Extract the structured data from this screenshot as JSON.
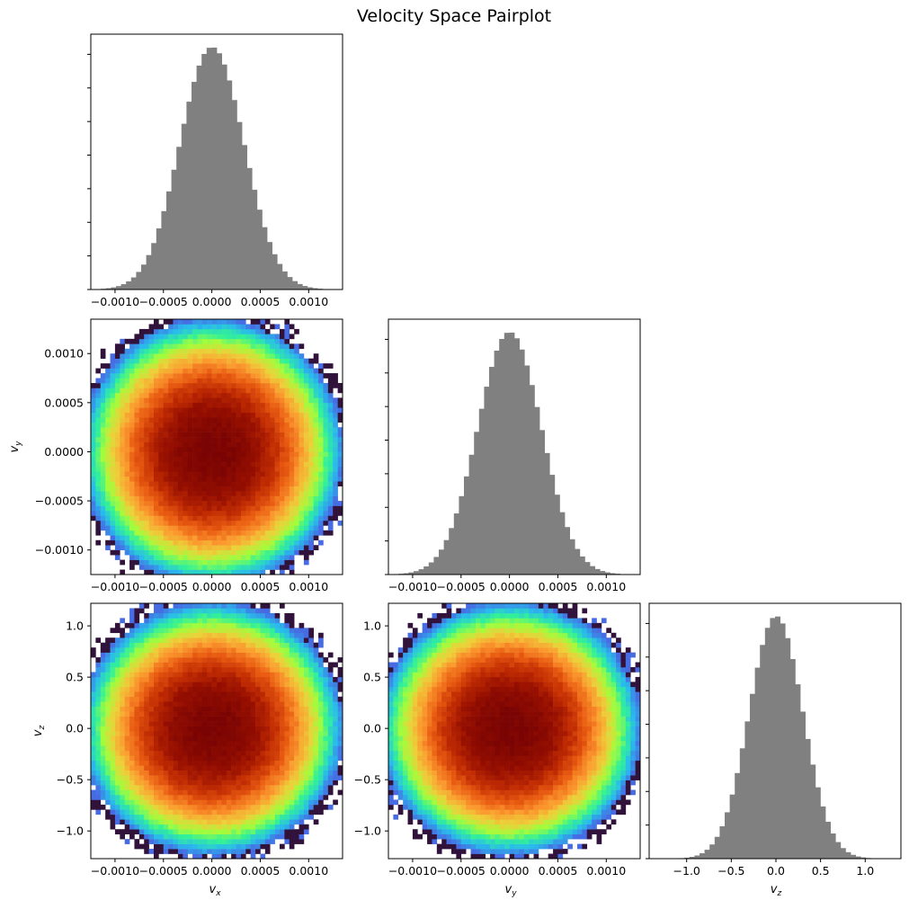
{
  "chart_data": {
    "title": "Velocity Space Pairplot",
    "type": "pairplot",
    "variables": [
      {
        "key": "vx",
        "label_base": "v",
        "label_sub": "x",
        "lim": [
          -0.00125,
          0.00135
        ],
        "sigma": 0.00033,
        "ticks": [
          -0.001,
          -0.0005,
          0.0,
          0.0005,
          0.001
        ],
        "tick_labels": [
          "−0.0010",
          "−0.0005",
          "0.0000",
          "0.0005",
          "0.0010"
        ]
      },
      {
        "key": "vy",
        "label_base": "v",
        "label_sub": "y",
        "lim": [
          -0.00125,
          0.00135
        ],
        "sigma": 0.00033,
        "ticks": [
          -0.001,
          -0.0005,
          0.0,
          0.0005,
          0.001
        ],
        "tick_labels": [
          "−0.0010",
          "−0.0005",
          "0.0000",
          "0.0005",
          "0.0010"
        ]
      },
      {
        "key": "vz",
        "label_base": "v",
        "label_sub": "z",
        "lim": [
          -1.27,
          1.22
        ],
        "sigma": 0.3,
        "ticks": [
          -1.0,
          -0.5,
          0.0,
          0.5,
          1.0
        ],
        "tick_labels": [
          "−1.0",
          "−0.5",
          "0.0",
          "0.5",
          "1.0"
        ]
      }
    ],
    "diagonal": {
      "type": "histogram",
      "color": "#808080",
      "xlims": [
        [
          -0.00125,
          0.00135
        ],
        [
          -0.00125,
          0.00135
        ],
        [
          -1.42,
          1.4
        ]
      ],
      "bins": 50,
      "distribution": "approximately normal, mean 0"
    },
    "off_diagonal": {
      "type": "heatmap",
      "colormap": "turbo",
      "panels": [
        {
          "x": "vx",
          "y": "vy",
          "ylim": [
            -0.00125,
            0.00135
          ]
        },
        {
          "x": "vx",
          "y": "vz",
          "ylim": [
            -1.27,
            1.22
          ]
        },
        {
          "x": "vy",
          "y": "vz",
          "ylim": [
            -1.27,
            1.22
          ]
        }
      ]
    },
    "bottom_row_diag_ticks": [
      -1.0,
      -0.5,
      0.0,
      0.5,
      1.0
    ],
    "bottom_row_diag_tick_labels": [
      "−1.0",
      "−0.5",
      "0.0",
      "0.5",
      "1.0"
    ],
    "grid": false,
    "legend": "none"
  }
}
